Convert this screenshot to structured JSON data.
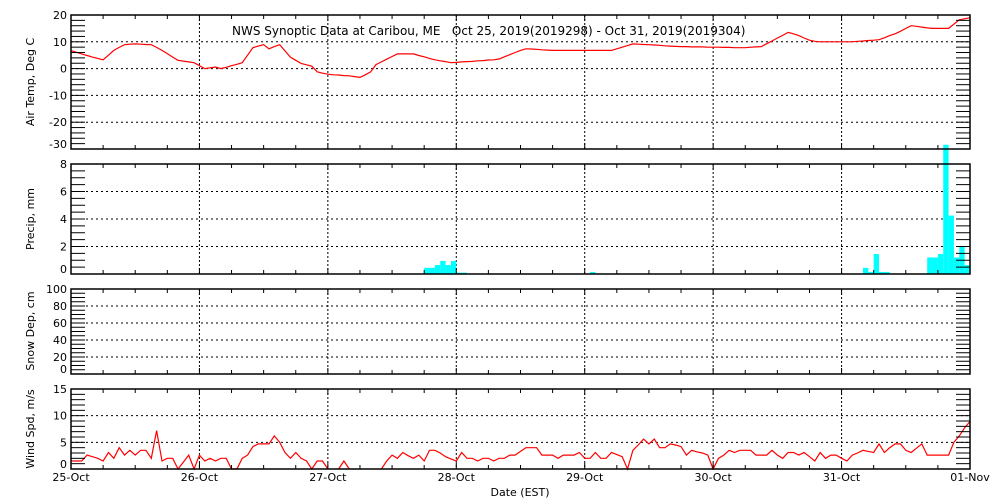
{
  "chart_data": [
    {
      "type": "line",
      "title": "NWS Synoptic Data at Caribou, ME   Oct 25, 2019(2019298) - Oct 31, 2019(2019304)",
      "ylabel": "Air Temp, Deg C",
      "ylim": [
        -30,
        20
      ],
      "yticks": [
        "-30",
        "-20",
        "-10",
        "0",
        "10",
        "20"
      ],
      "grid": true,
      "color": "#ff0000",
      "series": [
        {
          "date": "2019-10-25",
          "hourly": [
            6.7,
            6.1,
            5.5,
            4.9,
            4.3,
            3.8,
            3.3,
            5,
            6.8,
            7.9,
            8.9,
            9.1,
            9.2,
            9.1,
            9,
            8.9,
            7.9,
            6.8,
            5.6,
            4.3,
            3.1,
            2.8,
            2.5,
            2.2
          ]
        },
        {
          "date": "2019-10-26",
          "hourly": [
            1.1,
            0,
            0.3,
            0.6,
            0,
            0.5,
            1.1,
            1.6,
            2.2,
            5,
            7.8,
            8.4,
            8.9,
            7.4,
            8.2,
            8.9,
            6.6,
            4.3,
            3.1,
            1.9,
            1.4,
            0.9,
            -1.2,
            -1.7
          ]
        },
        {
          "date": "2019-10-27",
          "hourly": [
            -2.1,
            -2.3,
            -2.4,
            -2.6,
            -2.7,
            -3,
            -3.3,
            -2.3,
            -1.2,
            1.5,
            2.5,
            3.5,
            4.5,
            5.5,
            5.5,
            5.5,
            5.5,
            4.9,
            4.4,
            3.8,
            3.3,
            2.9,
            2.6,
            2.2
          ]
        },
        {
          "date": "2019-10-28",
          "hourly": [
            2.3,
            2.5,
            2.6,
            2.7,
            2.9,
            3,
            3.2,
            3.3,
            3.6,
            4.4,
            5.2,
            6,
            6.8,
            7.4,
            7.3,
            7.2,
            7,
            6.9,
            6.8,
            6.8,
            6.8,
            6.8,
            6.8,
            6.8
          ]
        },
        {
          "date": "2019-10-29",
          "hourly": [
            6.8,
            6.8,
            6.8,
            6.8,
            6.8,
            6.8,
            7.4,
            8,
            8.6,
            9.2,
            9.1,
            9,
            8.9,
            8.8,
            8.7,
            8.5,
            8.4,
            8.3,
            8.2,
            8.2,
            8.1,
            8.1,
            8.1,
            8
          ]
        },
        {
          "date": "2019-10-30",
          "hourly": [
            8,
            8,
            7.9,
            7.9,
            7.8,
            7.8,
            7.8,
            8,
            8.1,
            8.2,
            9.3,
            10.3,
            11.4,
            12.4,
            13.5,
            13,
            12.3,
            11.4,
            10.6,
            10.2,
            10,
            10,
            10,
            10
          ]
        },
        {
          "date": "2019-10-31",
          "hourly": [
            10,
            10,
            10,
            10.2,
            10.3,
            10.5,
            10.6,
            10.8,
            11.5,
            12.3,
            13,
            13.9,
            15,
            16,
            15.8,
            15.5,
            15.2,
            15,
            15,
            15,
            15,
            16.6,
            18.2,
            18.6
          ]
        },
        {
          "date": "2019-11-01",
          "hourly": [
            19
          ]
        }
      ]
    },
    {
      "type": "bar",
      "ylabel": "Precip, mm",
      "ylim": [
        0,
        8
      ],
      "yticks": [
        "0",
        "2",
        "4",
        "6",
        "8"
      ],
      "grid": true,
      "color": "#00ffff",
      "series": [
        {
          "date": "2019-10-25",
          "hourly": [
            0,
            0,
            0,
            0,
            0,
            0,
            0,
            0,
            0,
            0,
            0,
            0,
            0,
            0,
            0,
            0,
            0,
            0,
            0,
            0,
            0,
            0,
            0,
            0
          ]
        },
        {
          "date": "2019-10-26",
          "hourly": [
            0,
            0,
            0,
            0,
            0,
            0,
            0,
            0,
            0,
            0,
            0,
            0,
            0,
            0,
            0,
            0,
            0,
            0,
            0,
            0,
            0,
            0,
            0,
            0
          ]
        },
        {
          "date": "2019-10-27",
          "hourly": [
            0,
            0,
            0,
            0,
            0,
            0,
            0,
            0,
            0,
            0,
            0,
            0,
            0,
            0,
            0,
            0,
            0,
            0,
            0.45,
            0.45,
            0.65,
            0.95,
            0.65,
            0.95
          ]
        },
        {
          "date": "2019-10-28",
          "hourly": [
            0.1,
            0.1,
            0,
            0,
            0,
            0,
            0,
            0,
            0,
            0,
            0,
            0,
            0,
            0,
            0,
            0,
            0,
            0,
            0,
            0,
            0,
            0,
            0,
            0
          ]
        },
        {
          "date": "2019-10-29",
          "hourly": [
            0,
            0.15,
            0,
            0,
            0,
            0,
            0,
            0,
            0,
            0,
            0,
            0,
            0,
            0,
            0,
            0,
            0,
            0,
            0,
            0,
            0,
            0,
            0,
            0
          ]
        },
        {
          "date": "2019-10-30",
          "hourly": [
            0,
            0,
            0,
            0,
            0,
            0,
            0,
            0,
            0,
            0,
            0,
            0,
            0,
            0,
            0,
            0,
            0,
            0,
            0,
            0,
            0,
            0,
            0,
            0
          ]
        },
        {
          "date": "2019-10-31",
          "hourly": [
            0,
            0,
            0,
            0,
            0.45,
            0.15,
            1.45,
            0.15,
            0.15,
            0,
            0,
            0,
            0,
            0,
            0,
            0,
            1.2,
            1.2,
            1.45,
            9.4,
            4.25,
            1.2,
            2.0,
            0.65
          ]
        }
      ]
    },
    {
      "type": "line",
      "ylabel": "Snow Dep, cm",
      "ylim": [
        0,
        100
      ],
      "yticks": [
        "0",
        "20",
        "40",
        "60",
        "80",
        "100"
      ],
      "grid": true,
      "series": []
    },
    {
      "type": "line",
      "ylabel": "Wind Spd, m/s",
      "ylim": [
        0,
        15
      ],
      "yticks": [
        "0",
        "5",
        "10",
        "15"
      ],
      "grid": true,
      "color": "#ff0000",
      "xlabel": "Date (EST)",
      "xticks": [
        "25-Oct",
        "26-Oct",
        "27-Oct",
        "28-Oct",
        "29-Oct",
        "30-Oct",
        "31-Oct",
        "01-Nov"
      ],
      "series": [
        {
          "date": "2019-10-25",
          "hourly": [
            1.5,
            1.5,
            1.5,
            2.6,
            2.3,
            2,
            1.5,
            3.1,
            2,
            4,
            2.6,
            3.5,
            2.6,
            3.5,
            3.5,
            2,
            7.2,
            1.5,
            2,
            2,
            0,
            1.3,
            2.6,
            0
          ]
        },
        {
          "date": "2019-10-26",
          "hourly": [
            2.6,
            1.5,
            2,
            1.5,
            2,
            2,
            0,
            0,
            2,
            2.6,
            4.2,
            4.7,
            4.7,
            4.7,
            6.2,
            5,
            3.1,
            2,
            3.1,
            2,
            1.5,
            0,
            1.5,
            1.5
          ]
        },
        {
          "date": "2019-10-27",
          "hourly": [
            0,
            null,
            0,
            1.5,
            0,
            null,
            null,
            null,
            null,
            null,
            0,
            1.5,
            2.6,
            2,
            3.1,
            2.5,
            2,
            2.6,
            1.5,
            3.5,
            3.5,
            3,
            2.3,
            1.9
          ]
        },
        {
          "date": "2019-10-28",
          "hourly": [
            1.5,
            3.1,
            2,
            2,
            1.5,
            2,
            2,
            1.5,
            2,
            2,
            2.6,
            2.6,
            3.3,
            4,
            4,
            4,
            2.6,
            2.6,
            2.6,
            2,
            2.6,
            2.6,
            2.6,
            3.1
          ]
        },
        {
          "date": "2019-10-29",
          "hourly": [
            2,
            2,
            3.1,
            2,
            2,
            3.1,
            2.7,
            2.3,
            0,
            3.5,
            4.5,
            5.6,
            4.7,
            5.6,
            4,
            4,
            4.7,
            4.5,
            4.2,
            2.6,
            3.5,
            3.2,
            3,
            2.6
          ]
        },
        {
          "date": "2019-10-30",
          "hourly": [
            0,
            2,
            2.6,
            3.5,
            3.1,
            3.5,
            3.5,
            3.5,
            2.6,
            2.6,
            2.6,
            3.5,
            2.6,
            2,
            3.1,
            3.1,
            2.6,
            3.1,
            2.3,
            1.5,
            3.1,
            2,
            2.6,
            2.6
          ]
        },
        {
          "date": "2019-10-31",
          "hourly": [
            2,
            1.5,
            2.6,
            3,
            3.5,
            3.3,
            3.1,
            4.7,
            3.1,
            4,
            4.7,
            4.7,
            3.5,
            3.1,
            3.9,
            4.7,
            2.6,
            2.6,
            2.6,
            2.6,
            2.6,
            5,
            6.2,
            7.7
          ]
        },
        {
          "date": "2019-11-01",
          "hourly": [
            8.9
          ]
        }
      ]
    }
  ]
}
